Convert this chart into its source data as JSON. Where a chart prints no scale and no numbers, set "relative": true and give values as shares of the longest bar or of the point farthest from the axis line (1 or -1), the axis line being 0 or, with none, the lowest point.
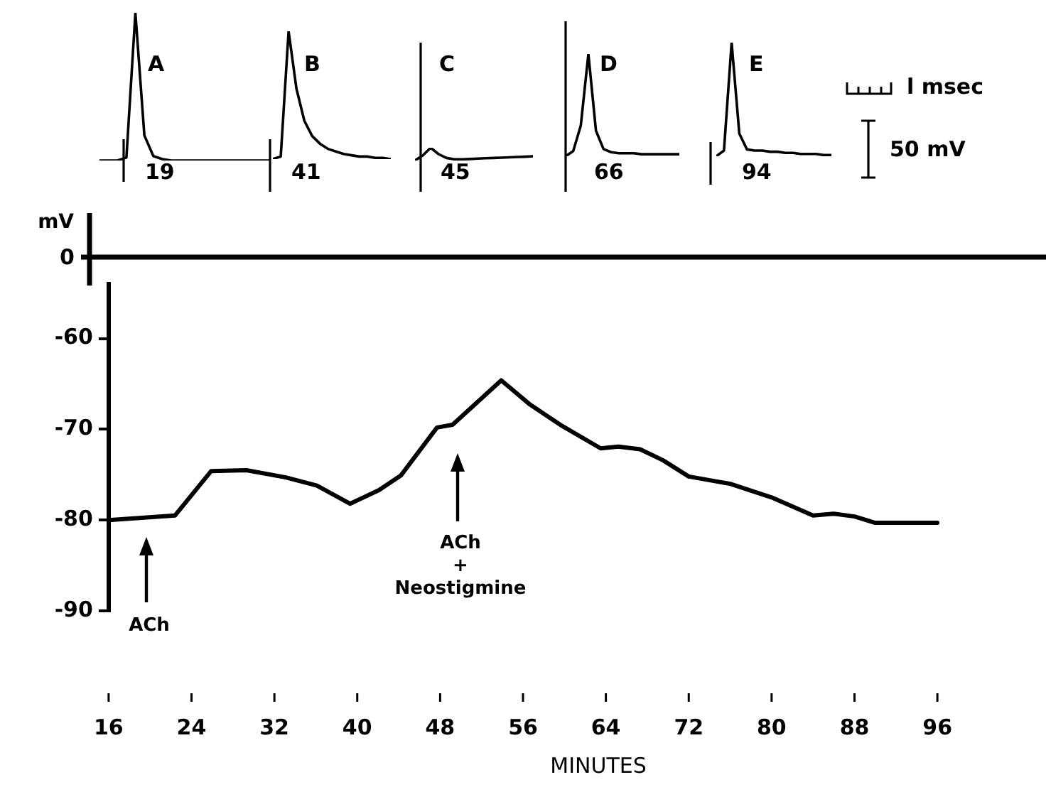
{
  "chart_data": [
    {
      "type": "line",
      "relative": true,
      "title": "A",
      "categories": [
        null,
        null,
        null,
        null,
        null,
        null,
        null,
        null,
        null,
        null,
        null,
        null,
        null,
        null,
        null,
        null,
        null,
        null,
        null,
        null
      ],
      "series": [
        {
          "color": "#000000",
          "values": [
            0,
            0,
            0,
            0.02,
            1,
            0.17,
            0.03,
            0.01,
            0,
            0,
            0,
            0,
            0,
            0,
            0,
            0,
            0,
            0,
            0,
            0
          ]
        }
      ],
      "annotations": [
        "19"
      ]
    },
    {
      "type": "line",
      "relative": true,
      "title": "B",
      "categories": [
        null,
        null,
        null,
        null,
        null,
        null,
        null,
        null,
        null,
        null,
        null,
        null,
        null,
        null,
        null,
        null
      ],
      "series": [
        {
          "color": "#000000",
          "values": [
            0,
            0.02,
            1,
            0.55,
            0.3,
            0.18,
            0.12,
            0.08,
            0.06,
            0.04,
            0.03,
            0.02,
            0.02,
            0.01,
            0.01,
            0
          ]
        }
      ],
      "annotations": [
        "41"
      ]
    },
    {
      "type": "line",
      "relative": true,
      "title": "C",
      "categories": [
        null,
        null,
        null,
        null,
        null,
        null,
        null,
        null,
        null,
        null,
        null,
        null,
        null,
        null,
        null,
        null
      ],
      "series": [
        {
          "color": "#000000",
          "values": [
            0,
            0.4,
            1,
            0.5,
            0.2,
            0.1,
            0.1,
            0.12,
            0.15,
            0.18,
            0.2,
            0.22,
            0.25,
            0.28,
            0.3,
            0.33
          ]
        }
      ],
      "annotations": [
        "45"
      ]
    },
    {
      "type": "line",
      "relative": true,
      "title": "D",
      "categories": [
        null,
        null,
        null,
        null,
        null,
        null,
        null,
        null,
        null,
        null,
        null,
        null,
        null,
        null,
        null,
        null
      ],
      "series": [
        {
          "color": "#000000",
          "values": [
            0,
            0.05,
            0.3,
            1,
            0.25,
            0.07,
            0.04,
            0.03,
            0.03,
            0.03,
            0.02,
            0.02,
            0.02,
            0.02,
            0.02,
            0.02
          ]
        }
      ],
      "annotations": [
        "66"
      ]
    },
    {
      "type": "line",
      "relative": true,
      "title": "E",
      "categories": [
        null,
        null,
        null,
        null,
        null,
        null,
        null,
        null,
        null,
        null,
        null,
        null,
        null,
        null,
        null,
        null
      ],
      "series": [
        {
          "color": "#000000",
          "values": [
            0,
            0.05,
            1,
            0.2,
            0.06,
            0.05,
            0.05,
            0.04,
            0.04,
            0.03,
            0.03,
            0.02,
            0.02,
            0.02,
            0.01,
            0.01
          ]
        }
      ],
      "annotations": [
        "94"
      ]
    },
    {
      "type": "other",
      "annotations": [
        "0",
        "l msec",
        "50 mV"
      ]
    },
    {
      "type": "line",
      "xlabel": "MINUTES",
      "ylabel": "mV",
      "xlim": [
        16,
        96
      ],
      "ylim": [
        -90,
        -54
      ],
      "xticks": [
        16,
        24,
        32,
        40,
        48,
        56,
        64,
        72,
        80,
        88,
        96
      ],
      "yticks": [
        -60,
        -70,
        -80,
        -90
      ],
      "series": [
        {
          "color": "#000000",
          "x": [
            16,
            22.4,
            25.9,
            29.3,
            33.1,
            36.1,
            39.3,
            42.1,
            44.2,
            47.7,
            49.2,
            53.9,
            56.6,
            59.6,
            63.5,
            65.2,
            67.3,
            69.5,
            72,
            76,
            80,
            84,
            86,
            88,
            90,
            96
          ],
          "values": [
            -80,
            -79.5,
            -74.6,
            -74.5,
            -75.3,
            -76.2,
            -78.2,
            -76.7,
            -75.1,
            -69.8,
            -69.5,
            -64.6,
            -67.2,
            -69.5,
            -72.1,
            -71.9,
            -72.2,
            -73.4,
            -75.2,
            -76,
            -77.5,
            -79.5,
            -79.3,
            -79.6,
            -80.3,
            -80.3
          ]
        }
      ],
      "annotations": [
        "ACh",
        "ACh\n+\nNeostigmine"
      ]
    }
  ]
}
